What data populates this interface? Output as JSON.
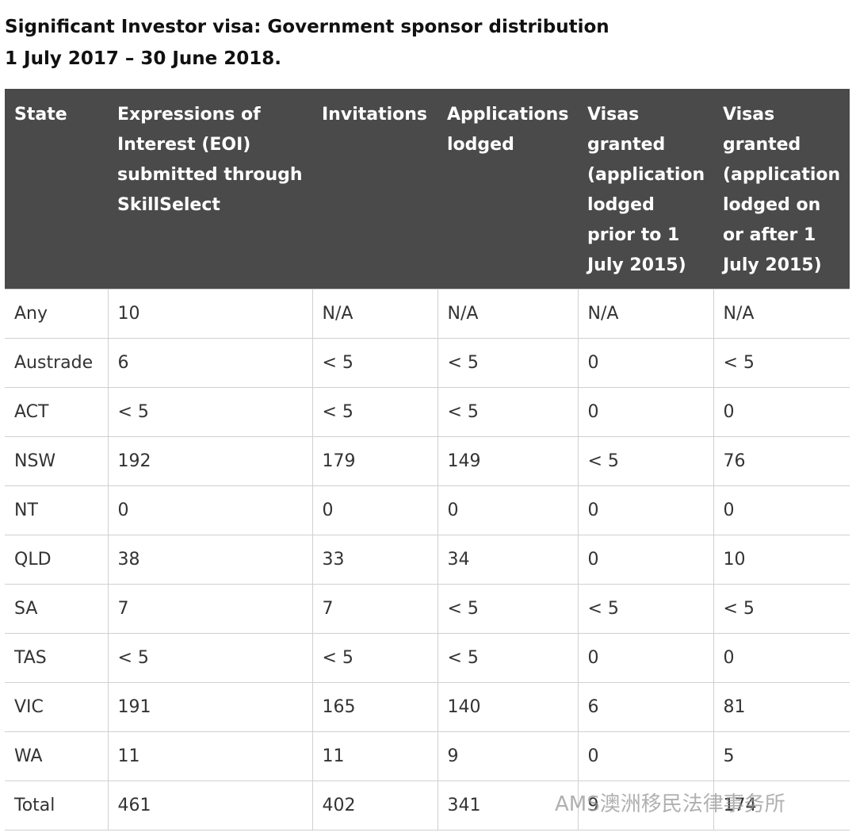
{
  "header": {
    "title": [
      "Significant Investor visa: Government sponsor distribution",
      "1 July 2017 – 30 June 2018."
    ]
  },
  "table": {
    "columns": [
      "State",
      "Expressions of Interest (EOI) submitted through SkillSelect",
      "Invitations",
      "Applications lodged",
      "Visas granted (application lodged prior to 1 July 2015)",
      "Visas granted (application lodged on or after 1 July 2015)"
    ],
    "rows": [
      [
        "Any",
        "10",
        "N/A",
        "N/A",
        "N/A",
        "N/A"
      ],
      [
        "Austrade",
        "6",
        "< 5",
        "< 5",
        "0",
        "< 5"
      ],
      [
        "ACT",
        "< 5",
        "< 5",
        "< 5",
        "0",
        "0"
      ],
      [
        "NSW",
        "192",
        "179",
        "149",
        "< 5",
        "76"
      ],
      [
        "NT",
        "0",
        "0",
        "0",
        "0",
        "0"
      ],
      [
        "QLD",
        "38",
        "33",
        "34",
        "0",
        "10"
      ],
      [
        "SA",
        "7",
        "7",
        "< 5",
        "< 5",
        "< 5"
      ],
      [
        "TAS",
        "< 5",
        "< 5",
        "< 5",
        "0",
        "0"
      ],
      [
        "VIC",
        "191",
        "165",
        "140",
        "6",
        "81"
      ],
      [
        "WA",
        "11",
        "11",
        "9",
        "0",
        "5"
      ],
      [
        "Total",
        "461",
        "402",
        "341",
        "9",
        "174"
      ]
    ]
  },
  "watermark": "AMS澳洲移民法律事务所"
}
